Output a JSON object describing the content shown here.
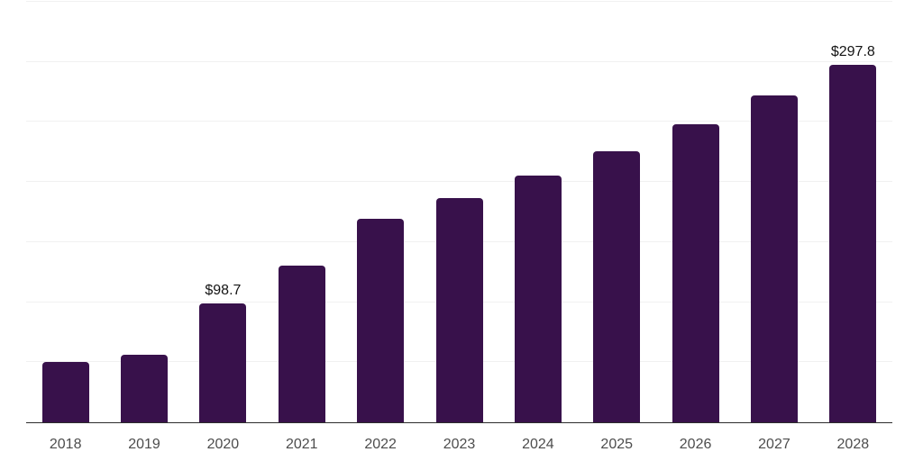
{
  "page": {
    "background": "#ffffff"
  },
  "chart_data": {
    "type": "bar",
    "title": "",
    "xlabel": "",
    "ylabel": "",
    "categories": [
      "2018",
      "2019",
      "2020",
      "2021",
      "2022",
      "2023",
      "2024",
      "2025",
      "2026",
      "2027",
      "2028"
    ],
    "values": [
      50.4,
      56.4,
      98.7,
      130.4,
      169.6,
      186.6,
      205.6,
      225.4,
      248.3,
      272.1,
      297.8
    ],
    "value_labels": [
      "",
      "",
      "$98.7",
      "",
      "",
      "",
      "",
      "",
      "",
      "",
      "$297.8"
    ],
    "ylim": [
      0,
      350
    ],
    "grid_step": 50,
    "grid": "on",
    "legend": "none",
    "colors": {
      "bar": "#38114b",
      "gridline": "#f1f1f1",
      "axis_line": "#2c2c2c",
      "tick_label": "#4d4d4d",
      "value_label": "#141414"
    }
  }
}
